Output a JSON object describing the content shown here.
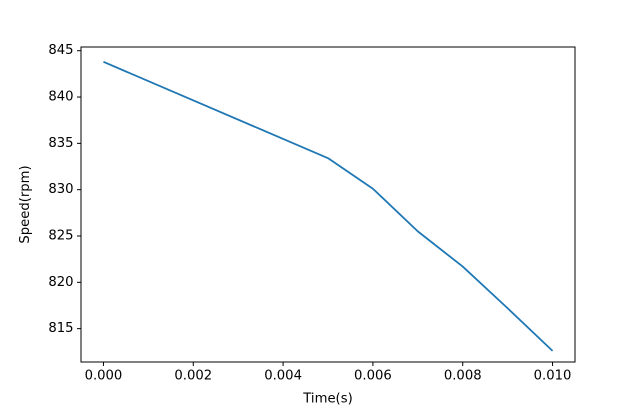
{
  "figure": {
    "background_color": "#ffffff"
  },
  "chart_data": {
    "type": "line",
    "title": "",
    "xlabel": "Time(s)",
    "ylabel": "Speed(rpm)",
    "x": [
      0.0,
      0.005,
      0.006,
      0.007,
      0.008,
      0.009,
      0.01
    ],
    "series": [
      {
        "name": "speed",
        "values": [
          843.8,
          833.4,
          830.1,
          825.5,
          821.7,
          817.2,
          812.6
        ],
        "color": "#1f77b4",
        "line_width": 1.8
      }
    ],
    "x_ticks": [
      0.0,
      0.002,
      0.004,
      0.006,
      0.008,
      0.01
    ],
    "x_ticklabels": [
      "0.000",
      "0.002",
      "0.004",
      "0.006",
      "0.008",
      "0.010"
    ],
    "y_ticks": [
      815,
      820,
      825,
      830,
      835,
      840,
      845
    ],
    "y_ticklabels": [
      "815",
      "820",
      "825",
      "830",
      "835",
      "840",
      "845"
    ],
    "xlim": [
      -0.0005,
      0.0105
    ],
    "ylim": [
      811.4,
      845.4
    ],
    "grid": false,
    "legend": "none",
    "spine_color": "#000000"
  }
}
